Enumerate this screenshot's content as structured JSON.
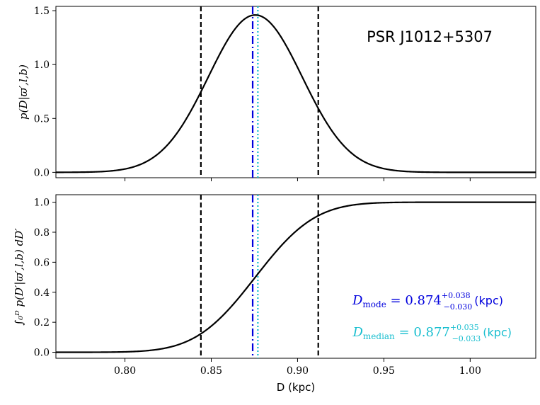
{
  "chart_data": [
    {
      "type": "line",
      "panel": "top",
      "title": "PSR J1012+5307",
      "ylabel": "p(D|ϖ′,l,b)",
      "xlim": [
        0.76,
        1.038
      ],
      "ylim": [
        -0.05,
        1.54
      ],
      "yticks": [
        {
          "value": 0.0,
          "label": "0.0"
        },
        {
          "value": 0.5,
          "label": "0.5"
        },
        {
          "value": 1.0,
          "label": "1.0"
        },
        {
          "value": 1.5,
          "label": "1.5"
        }
      ],
      "xticks": [
        0.8,
        0.85,
        0.9,
        0.95,
        1.0
      ],
      "series": [
        {
          "name": "pdf",
          "kind": "gaussian",
          "mu": 0.8755,
          "sigma": 0.0272,
          "peak": 1.46,
          "color": "#000000"
        }
      ],
      "vlines": [
        {
          "name": "lower-bound",
          "x": 0.844,
          "color": "#000000",
          "style": "dashed"
        },
        {
          "name": "mode",
          "x": 0.874,
          "color": "#0000dd",
          "style": "dashdot"
        },
        {
          "name": "median",
          "x": 0.877,
          "color": "#17becf",
          "style": "dotted"
        },
        {
          "name": "upper-bound",
          "x": 0.912,
          "color": "#000000",
          "style": "dashed"
        }
      ]
    },
    {
      "type": "line",
      "panel": "bottom",
      "xlabel": "D (kpc)",
      "ylabel": "∫₀ᴰ p(D′|ϖ′,l,b) dD′",
      "xlim": [
        0.76,
        1.038
      ],
      "ylim": [
        -0.04,
        1.05
      ],
      "yticks": [
        {
          "value": 0.0,
          "label": "0.0"
        },
        {
          "value": 0.2,
          "label": "0.2"
        },
        {
          "value": 0.4,
          "label": "0.4"
        },
        {
          "value": 0.6,
          "label": "0.6"
        },
        {
          "value": 0.8,
          "label": "0.8"
        },
        {
          "value": 1.0,
          "label": "1.0"
        }
      ],
      "xticks": [
        {
          "value": 0.8,
          "label": "0.80"
        },
        {
          "value": 0.85,
          "label": "0.85"
        },
        {
          "value": 0.9,
          "label": "0.90"
        },
        {
          "value": 0.95,
          "label": "0.95"
        },
        {
          "value": 1.0,
          "label": "1.00"
        }
      ],
      "series": [
        {
          "name": "cdf",
          "kind": "gaussian-cdf",
          "mu": 0.8755,
          "sigma": 0.0272,
          "color": "#000000"
        }
      ],
      "vlines": [
        {
          "name": "lower-bound",
          "x": 0.844,
          "color": "#000000",
          "style": "dashed"
        },
        {
          "name": "mode",
          "x": 0.874,
          "color": "#0000dd",
          "style": "dashdot"
        },
        {
          "name": "median",
          "x": 0.877,
          "color": "#17becf",
          "style": "dotted"
        },
        {
          "name": "upper-bound",
          "x": 0.912,
          "color": "#000000",
          "style": "dashed"
        }
      ],
      "annotations": {
        "mode": {
          "symbol": "D",
          "subscript": "mode",
          "equals": " = 0.874",
          "sup": "+0.038",
          "sub": "−0.030",
          "unit": "(kpc)",
          "color": "#0000dd"
        },
        "median": {
          "symbol": "D",
          "subscript": "median",
          "equals": " = 0.877",
          "sup": "+0.035",
          "sub": "−0.033",
          "unit": "(kpc)",
          "color": "#17becf"
        }
      }
    }
  ]
}
